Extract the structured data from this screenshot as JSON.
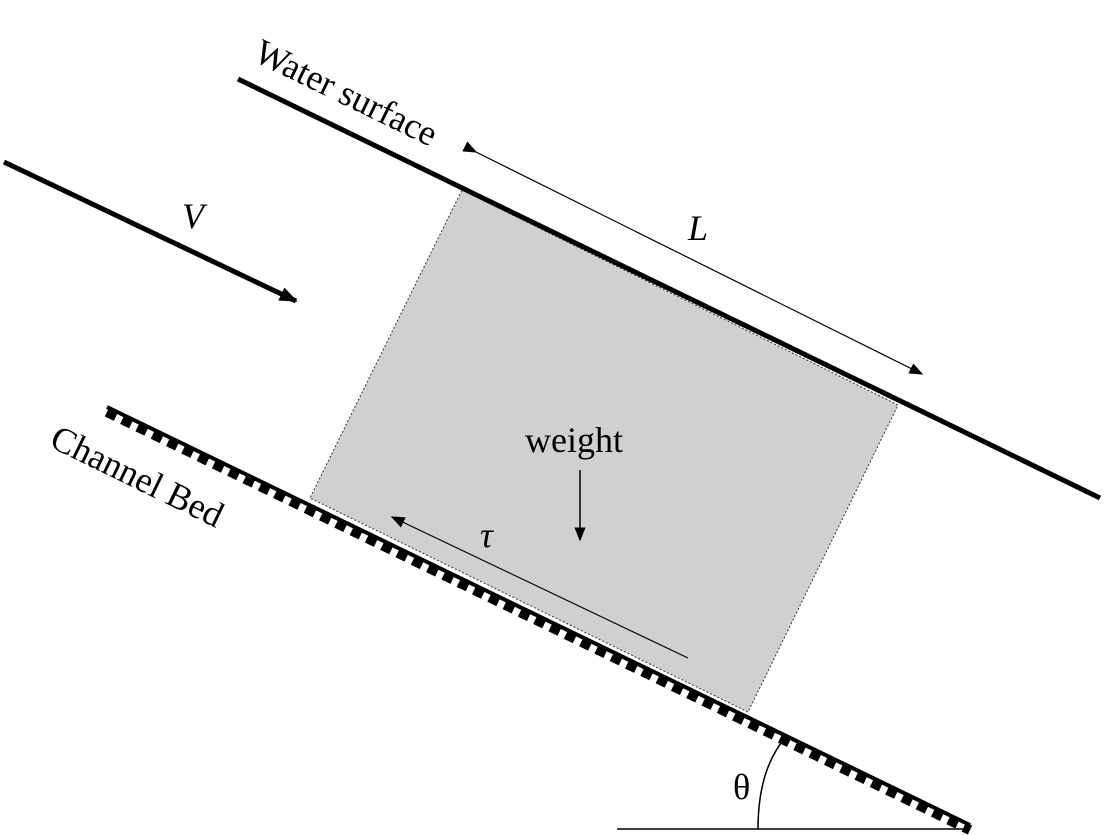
{
  "labels": {
    "water_surface": "Water surface",
    "channel_bed": "Channel Bed",
    "velocity": "V",
    "length": "L",
    "weight": "weight",
    "shear_stress": "τ",
    "angle": "θ"
  },
  "colors": {
    "control_volume_fill": "#d0cfd1",
    "line": "#000000",
    "background": "#ffffff"
  }
}
